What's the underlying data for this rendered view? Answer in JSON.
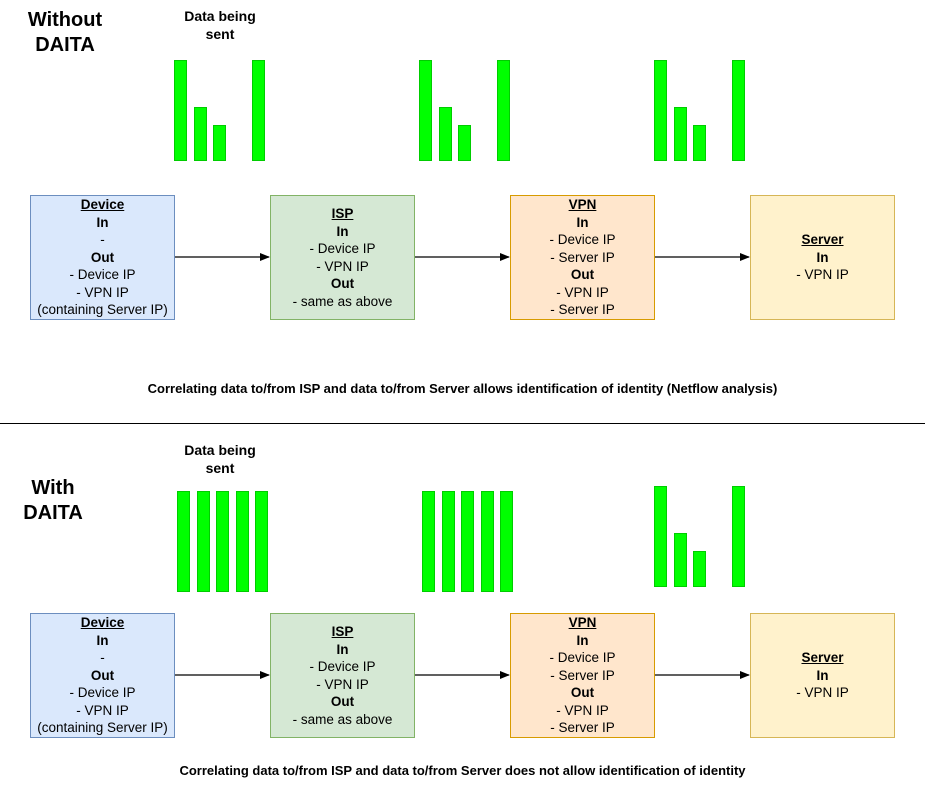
{
  "colors": {
    "bar": "#00ff00",
    "device_fill": "#dae8fc",
    "device_stroke": "#6c8ebf",
    "isp_fill": "#d5e8d4",
    "isp_stroke": "#82b366",
    "vpn_fill": "#ffe6cc",
    "vpn_stroke": "#d79b00",
    "server_fill": "#fff2cc",
    "server_stroke": "#d6b656"
  },
  "sections": [
    {
      "title": "Without\nDAITA",
      "data_caption": "Data being\nsent",
      "traffic_pattern": {
        "device": [
          1.0,
          0.53,
          0.36,
          1.0
        ],
        "isp": [
          1.0,
          0.53,
          0.36,
          1.0
        ],
        "vpn": [
          1.0,
          0.53,
          0.36,
          1.0
        ]
      },
      "boxes": {
        "device": {
          "title": "Device",
          "lines": [
            {
              "t": "In",
              "b": true
            },
            {
              "t": "-",
              "b": false
            },
            {
              "t": "Out",
              "b": true
            },
            {
              "t": "- Device IP",
              "b": false
            },
            {
              "t": "- VPN IP",
              "b": false
            },
            {
              "t": "(containing Server IP)",
              "b": false
            }
          ]
        },
        "isp": {
          "title": "ISP",
          "lines": [
            {
              "t": "In",
              "b": true
            },
            {
              "t": "- Device IP",
              "b": false
            },
            {
              "t": "- VPN IP",
              "b": false
            },
            {
              "t": "Out",
              "b": true
            },
            {
              "t": "- same as above",
              "b": false
            }
          ]
        },
        "vpn": {
          "title": "VPN",
          "lines": [
            {
              "t": "In",
              "b": true
            },
            {
              "t": "- Device IP",
              "b": false
            },
            {
              "t": "- Server IP",
              "b": false
            },
            {
              "t": "Out",
              "b": true
            },
            {
              "t": "- VPN IP",
              "b": false
            },
            {
              "t": "- Server IP",
              "b": false
            }
          ]
        },
        "server": {
          "title": "Server",
          "lines": [
            {
              "t": "In",
              "b": true
            },
            {
              "t": "- VPN IP",
              "b": false
            }
          ]
        }
      },
      "note": "Correlating data to/from ISP and data to/from Server allows identification of identity (Netflow analysis)"
    },
    {
      "title": "With\nDAITA",
      "data_caption": "Data being\nsent",
      "traffic_pattern": {
        "device": [
          1.0,
          1.0,
          1.0,
          1.0,
          1.0
        ],
        "isp": [
          1.0,
          1.0,
          1.0,
          1.0,
          1.0
        ],
        "vpn": [
          1.0,
          0.53,
          0.36,
          1.0
        ]
      },
      "boxes": {
        "device": {
          "title": "Device",
          "lines": [
            {
              "t": "In",
              "b": true
            },
            {
              "t": "-",
              "b": false
            },
            {
              "t": "Out",
              "b": true
            },
            {
              "t": "- Device IP",
              "b": false
            },
            {
              "t": "- VPN IP",
              "b": false
            },
            {
              "t": "(containing Server IP)",
              "b": false
            }
          ]
        },
        "isp": {
          "title": "ISP",
          "lines": [
            {
              "t": "In",
              "b": true
            },
            {
              "t": "- Device IP",
              "b": false
            },
            {
              "t": "- VPN IP",
              "b": false
            },
            {
              "t": "Out",
              "b": true
            },
            {
              "t": "- same as above",
              "b": false
            }
          ]
        },
        "vpn": {
          "title": "VPN",
          "lines": [
            {
              "t": "In",
              "b": true
            },
            {
              "t": "- Device IP",
              "b": false
            },
            {
              "t": "- Server IP",
              "b": false
            },
            {
              "t": "Out",
              "b": true
            },
            {
              "t": "- VPN IP",
              "b": false
            },
            {
              "t": "- Server IP",
              "b": false
            }
          ]
        },
        "server": {
          "title": "Server",
          "lines": [
            {
              "t": "In",
              "b": true
            },
            {
              "t": "- VPN IP",
              "b": false
            }
          ]
        }
      },
      "note": "Correlating data to/from ISP and data to/from Server does not allow identification of identity"
    }
  ]
}
